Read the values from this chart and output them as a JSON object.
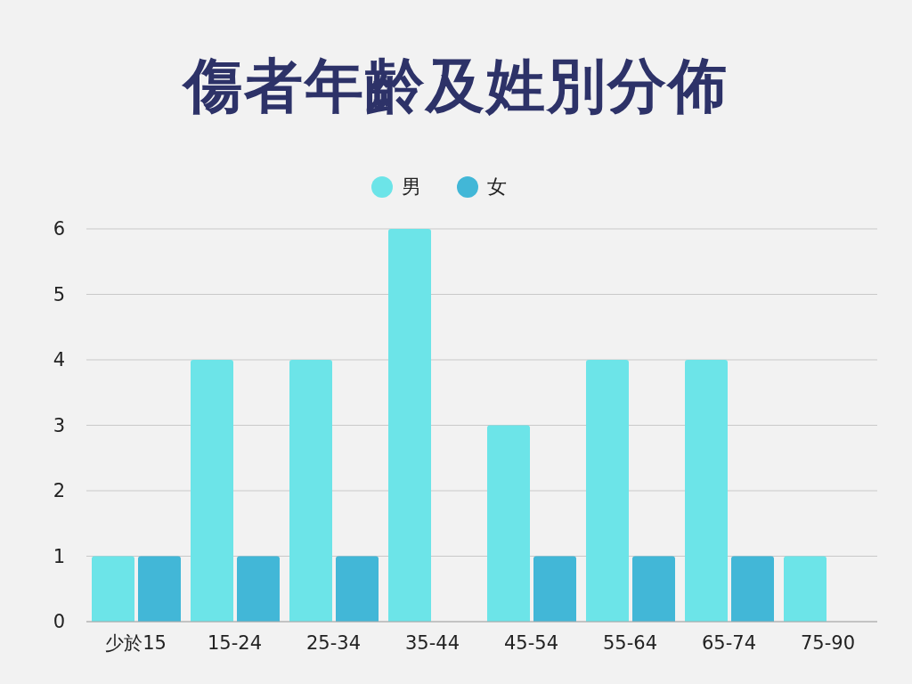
{
  "chart_data": {
    "type": "bar",
    "title": "傷者年齡及姓別分佈",
    "categories": [
      "少於15",
      "15-24",
      "25-34",
      "35-44",
      "45-54",
      "55-64",
      "65-74",
      "75-90"
    ],
    "series": [
      {
        "name": "男",
        "color": "#6ce4e8",
        "values": [
          1,
          4,
          4,
          6,
          3,
          4,
          4,
          1
        ]
      },
      {
        "name": "女",
        "color": "#42b7d7",
        "values": [
          1,
          1,
          1,
          0,
          1,
          1,
          1,
          0
        ]
      }
    ],
    "ylim": [
      0,
      6
    ],
    "yticks": [
      0,
      1,
      2,
      3,
      4,
      5,
      6
    ],
    "grid": "y",
    "legend": "top"
  }
}
